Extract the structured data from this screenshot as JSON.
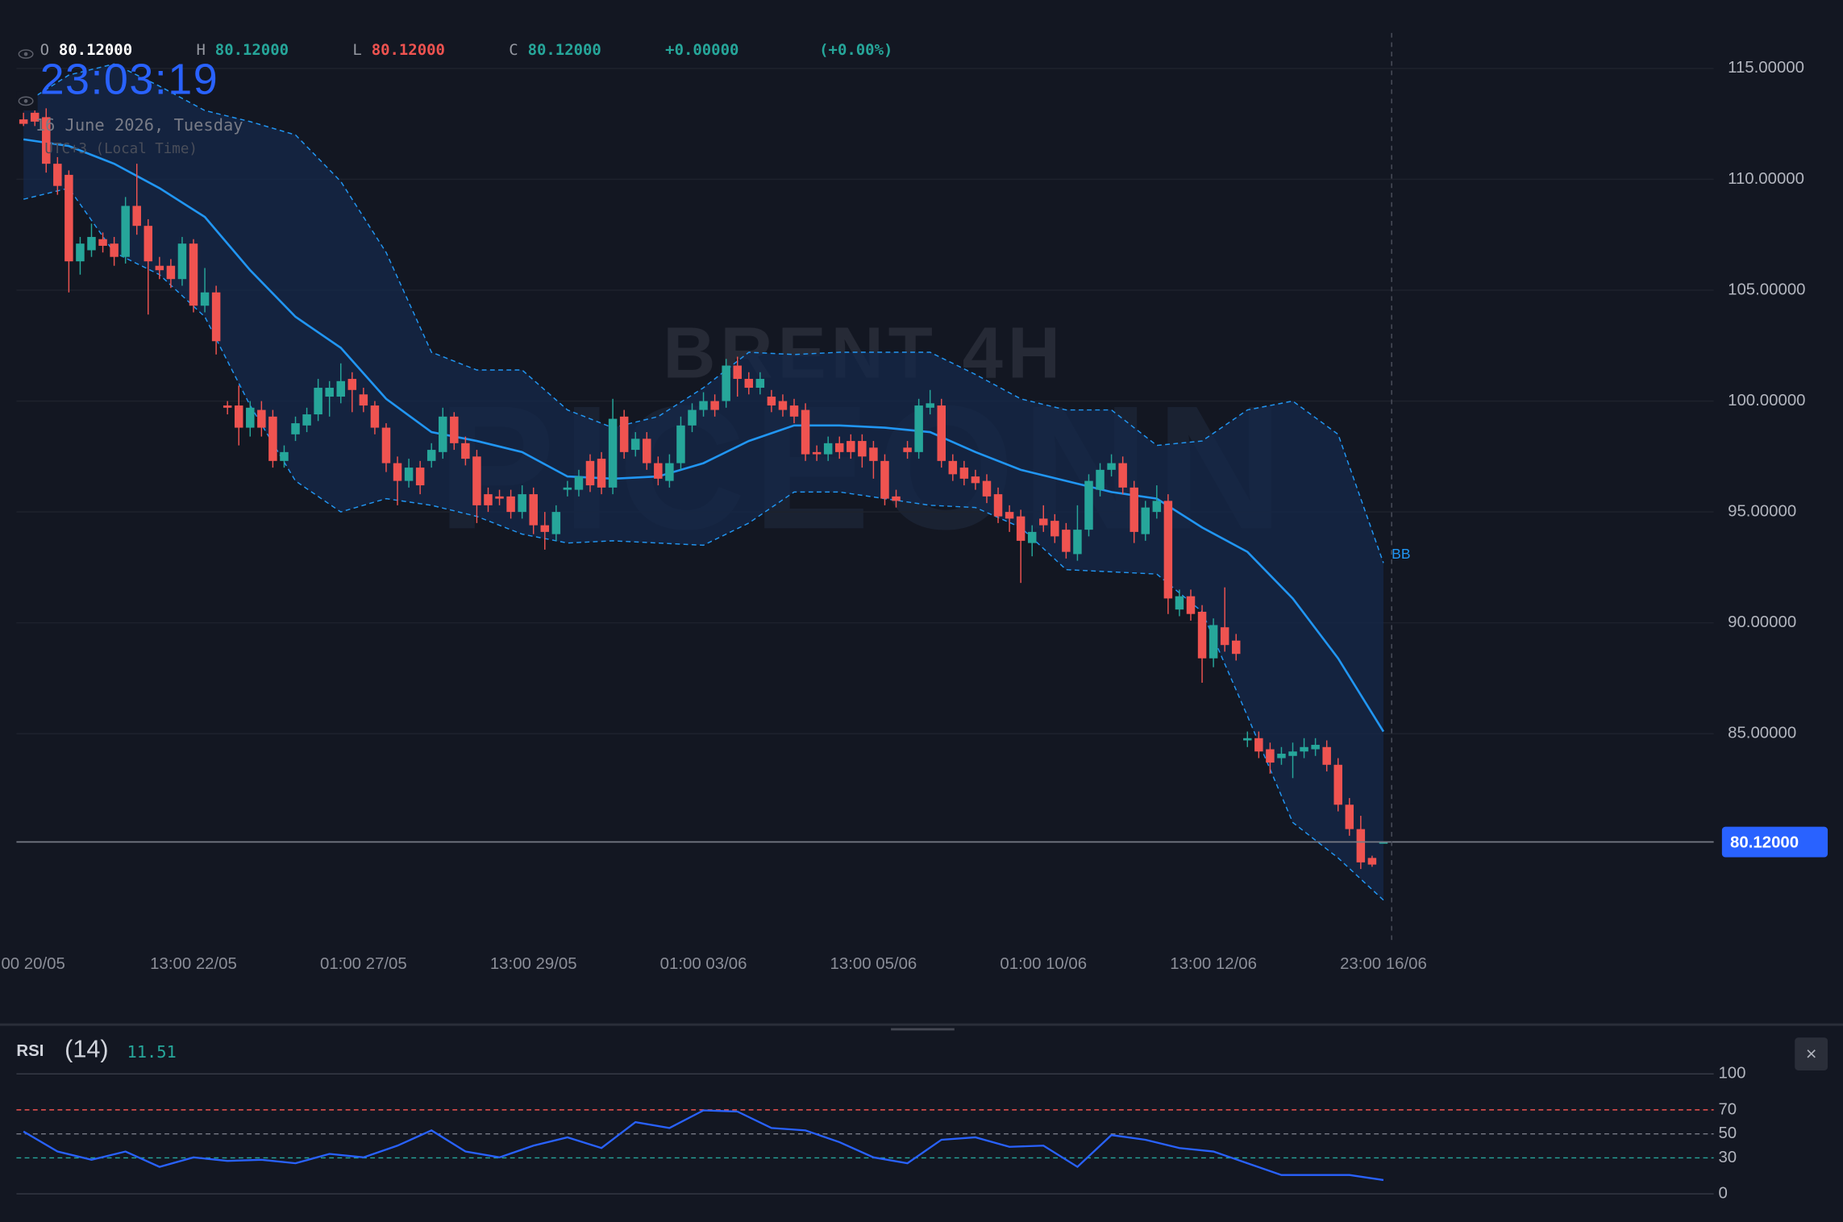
{
  "clock": {
    "time": "23:03:19",
    "date": "16 June 2026, Tuesday",
    "timezone": "UTC+3 (Local Time)"
  },
  "header": {
    "o_label": "O",
    "open": "80.12000",
    "h_label": "H",
    "high": "80.12000",
    "l_label": "L",
    "low": "80.12000",
    "c_label": "C",
    "close": "80.12000",
    "change": "+0.00000",
    "change_pct": "(+0.00%)"
  },
  "close_button": "×",
  "chart_data": [
    {
      "type": "candlestick",
      "title": "BRENT 4H",
      "watermark": "PICEONN",
      "up_color": "#26a69a",
      "down_color": "#ef5350",
      "grid": true,
      "ylim": [
        75.7,
        116.6
      ],
      "yticks": [
        {
          "value": 85,
          "label": "85.00000"
        },
        {
          "value": 90,
          "label": "90.00000"
        },
        {
          "value": 95,
          "label": "95.00000"
        },
        {
          "value": 100,
          "label": "100.00000"
        },
        {
          "value": 105,
          "label": "105.00000"
        },
        {
          "value": 110,
          "label": "110.00000"
        },
        {
          "value": 115,
          "label": "115.00000"
        }
      ],
      "xticks": [
        {
          "value": 0,
          "label": "00 20/05"
        },
        {
          "value": 15,
          "label": "13:00 22/05"
        },
        {
          "value": 30,
          "label": "01:00 27/05"
        },
        {
          "value": 45,
          "label": "13:00 29/05"
        },
        {
          "value": 60,
          "label": "01:00 03/06"
        },
        {
          "value": 75,
          "label": "13:00 05/06"
        },
        {
          "value": 90,
          "label": "01:00 10/06"
        },
        {
          "value": 105,
          "label": "13:00 12/06"
        },
        {
          "value": 120,
          "label": "23:00 16/06"
        }
      ],
      "open": [
        112.7,
        113.0,
        112.8,
        110.7,
        110.2,
        106.3,
        106.8,
        107.3,
        107.1,
        106.5,
        108.8,
        107.9,
        106.1,
        106.1,
        105.5,
        107.1,
        104.3,
        104.9,
        99.8,
        99.8,
        98.8,
        99.6,
        99.3,
        97.3,
        98.5,
        98.9,
        99.4,
        100.2,
        100.2,
        101.0,
        100.3,
        99.8,
        98.8,
        97.2,
        96.4,
        97.0,
        97.3,
        97.7,
        99.3,
        98.1,
        97.5,
        95.8,
        95.7,
        95.7,
        95.0,
        95.8,
        94.4,
        94.0,
        96.0,
        96.0,
        97.3,
        97.4,
        96.1,
        99.3,
        97.8,
        98.3,
        97.2,
        96.4,
        97.2,
        98.9,
        99.6,
        100.0,
        100.0,
        101.6,
        101.0,
        100.6,
        100.2,
        100.0,
        99.8,
        99.6,
        97.7,
        97.6,
        98.1,
        98.2,
        98.2,
        97.9,
        97.3,
        95.7,
        97.9,
        97.7,
        99.7,
        99.8,
        97.3,
        97.0,
        96.6,
        96.4,
        95.8,
        95.0,
        94.8,
        93.6,
        94.7,
        94.6,
        94.2,
        93.1,
        94.2,
        96.0,
        96.9,
        97.2,
        96.1,
        94.0,
        95.0,
        95.5,
        90.6,
        91.2,
        90.5,
        88.4,
        89.8,
        89.2,
        84.7,
        84.8,
        84.3,
        83.9,
        84.0,
        84.2,
        84.3,
        84.4,
        83.6,
        81.8,
        80.7,
        79.4,
        80.12
      ],
      "high": [
        113.0,
        113.3,
        113.2,
        111.0,
        110.4,
        107.4,
        108.0,
        107.6,
        107.4,
        109.2,
        110.7,
        108.2,
        106.5,
        106.4,
        107.4,
        107.3,
        106.0,
        105.2,
        100.0,
        100.7,
        100.0,
        100.0,
        99.6,
        98.0,
        99.3,
        99.7,
        101.0,
        100.9,
        101.7,
        101.3,
        100.6,
        100.0,
        99.0,
        97.5,
        97.4,
        97.3,
        98.1,
        99.7,
        99.5,
        98.4,
        97.8,
        96.1,
        96.0,
        96.0,
        96.2,
        96.1,
        95.0,
        95.3,
        96.4,
        96.9,
        97.6,
        97.7,
        100.1,
        99.6,
        98.6,
        98.6,
        97.5,
        97.6,
        99.3,
        99.9,
        100.4,
        100.3,
        101.9,
        102.0,
        101.3,
        101.3,
        100.5,
        100.3,
        100.1,
        99.9,
        98.0,
        98.4,
        98.4,
        98.5,
        98.5,
        98.2,
        97.6,
        96.0,
        98.2,
        100.1,
        100.5,
        100.1,
        97.6,
        97.3,
        96.9,
        96.7,
        96.1,
        95.3,
        95.1,
        94.4,
        95.3,
        94.9,
        94.5,
        95.3,
        96.7,
        97.2,
        97.6,
        97.5,
        96.4,
        95.5,
        96.2,
        95.8,
        91.5,
        91.5,
        90.8,
        90.2,
        91.6,
        89.5,
        85.1,
        85.1,
        84.6,
        84.4,
        84.6,
        84.8,
        84.8,
        84.7,
        83.9,
        82.1,
        81.3,
        79.5,
        80.12
      ],
      "low": [
        112.4,
        112.4,
        110.3,
        109.3,
        104.9,
        105.7,
        106.5,
        106.7,
        106.1,
        106.2,
        107.5,
        103.9,
        105.5,
        105.1,
        105.2,
        104.0,
        104.0,
        102.1,
        99.4,
        98.0,
        98.4,
        98.4,
        97.0,
        97.0,
        98.2,
        98.6,
        99.1,
        99.3,
        99.9,
        99.5,
        99.5,
        98.5,
        96.8,
        95.3,
        96.1,
        95.8,
        97.0,
        97.4,
        97.8,
        97.1,
        94.5,
        95.0,
        95.3,
        94.7,
        94.7,
        94.0,
        93.3,
        93.7,
        95.7,
        95.7,
        95.9,
        95.8,
        95.8,
        97.4,
        97.5,
        96.9,
        96.2,
        96.1,
        96.9,
        98.6,
        99.3,
        99.3,
        99.7,
        100.2,
        100.3,
        100.3,
        99.5,
        99.3,
        99.0,
        97.3,
        97.3,
        97.3,
        97.4,
        97.4,
        97.0,
        96.5,
        95.3,
        95.2,
        97.4,
        97.4,
        99.4,
        97.0,
        96.4,
        96.2,
        96.0,
        95.4,
        94.5,
        94.1,
        91.8,
        93.0,
        94.1,
        93.6,
        92.9,
        92.8,
        93.9,
        95.7,
        96.6,
        95.8,
        93.6,
        93.7,
        94.7,
        90.4,
        90.3,
        90.1,
        87.3,
        88.0,
        88.7,
        88.3,
        84.4,
        83.9,
        83.2,
        83.6,
        83.0,
        83.9,
        84.0,
        83.3,
        81.5,
        80.4,
        78.9,
        79.0,
        80.12
      ],
      "close": [
        112.5,
        112.6,
        110.7,
        109.7,
        106.3,
        107.1,
        107.4,
        107.0,
        106.5,
        108.8,
        107.9,
        106.3,
        105.9,
        105.5,
        107.1,
        104.3,
        104.9,
        102.7,
        99.7,
        98.8,
        99.7,
        98.8,
        97.3,
        97.7,
        99.0,
        99.4,
        100.6,
        100.6,
        100.9,
        100.5,
        99.8,
        98.8,
        97.2,
        96.4,
        97.0,
        96.2,
        97.8,
        99.3,
        98.1,
        97.4,
        95.3,
        95.3,
        95.6,
        95.0,
        95.8,
        94.4,
        94.1,
        95.0,
        96.1,
        96.6,
        96.2,
        96.1,
        99.2,
        97.7,
        98.3,
        97.2,
        96.5,
        97.2,
        98.9,
        99.6,
        100.0,
        99.6,
        101.6,
        101.0,
        100.6,
        101.0,
        99.8,
        99.6,
        99.3,
        97.6,
        97.6,
        98.1,
        97.7,
        97.7,
        97.5,
        97.3,
        95.6,
        95.5,
        97.7,
        99.8,
        99.9,
        97.3,
        96.7,
        96.5,
        96.3,
        95.7,
        94.8,
        94.7,
        93.7,
        94.1,
        94.4,
        93.9,
        93.2,
        94.2,
        96.4,
        96.9,
        97.2,
        96.1,
        94.1,
        95.2,
        95.5,
        91.1,
        91.2,
        90.4,
        88.4,
        89.9,
        89.0,
        88.6,
        84.8,
        84.2,
        83.7,
        84.1,
        84.2,
        84.4,
        84.5,
        83.6,
        81.8,
        80.7,
        79.2,
        79.1,
        80.12
      ],
      "last_price_label": "80.12000",
      "bollinger": {
        "name": "BB",
        "color": "#2196f3",
        "fill": "#16284a",
        "x": [
          0,
          4,
          8,
          12,
          16,
          20,
          24,
          28,
          32,
          36,
          40,
          44,
          48,
          52,
          56,
          60,
          64,
          68,
          72,
          76,
          80,
          84,
          88,
          92,
          96,
          100,
          104,
          108,
          112,
          116,
          120
        ],
        "upper": [
          113.4,
          114.7,
          115.2,
          114.2,
          113.1,
          112.6,
          112.0,
          109.9,
          106.7,
          102.2,
          101.4,
          101.4,
          99.6,
          98.8,
          99.3,
          100.6,
          102.2,
          102.1,
          102.2,
          102.2,
          102.2,
          101.2,
          100.1,
          99.6,
          99.6,
          98.0,
          98.2,
          99.6,
          100.0,
          98.5,
          92.7
        ],
        "middle": [
          111.8,
          111.5,
          110.7,
          109.6,
          108.3,
          105.9,
          103.8,
          102.4,
          100.1,
          98.6,
          98.2,
          97.7,
          96.6,
          96.5,
          96.6,
          97.2,
          98.2,
          98.9,
          98.9,
          98.8,
          98.6,
          97.7,
          96.9,
          96.4,
          95.9,
          95.6,
          94.3,
          93.2,
          91.1,
          88.4,
          85.1
        ],
        "lower": [
          109.1,
          109.6,
          106.7,
          105.7,
          103.8,
          99.8,
          96.4,
          95.0,
          95.6,
          95.3,
          94.8,
          94.0,
          93.6,
          93.7,
          93.6,
          93.5,
          94.5,
          95.9,
          95.9,
          95.6,
          95.3,
          95.2,
          94.3,
          92.4,
          92.3,
          92.2,
          90.5,
          85.8,
          81.0,
          79.4,
          77.5
        ]
      }
    },
    {
      "type": "line",
      "name": "RSI",
      "period_label": "(14)",
      "color": "#2962ff",
      "ylim": [
        -8,
        108
      ],
      "yticks": [
        0,
        30,
        50,
        70,
        100
      ],
      "level_colors": [
        "#363a45",
        "#26a69a",
        "#787b86",
        "#ef5350",
        "#363a45"
      ],
      "level_dashed": [
        false,
        true,
        true,
        true,
        false
      ],
      "x": [
        0,
        3,
        6,
        9,
        12,
        15,
        18,
        21,
        24,
        27,
        30,
        33,
        36,
        39,
        42,
        45,
        48,
        51,
        54,
        57,
        60,
        63,
        66,
        69,
        72,
        75,
        78,
        81,
        84,
        87,
        90,
        93,
        96,
        99,
        102,
        105,
        108,
        111,
        114,
        117,
        120
      ],
      "values": [
        52.0,
        35.3,
        28.4,
        35.3,
        22.5,
        30.4,
        27.5,
        28.4,
        25.5,
        33.3,
        30.4,
        40.2,
        52.9,
        35.3,
        30.4,
        40.2,
        47.1,
        38.2,
        59.8,
        54.9,
        69.6,
        68.6,
        54.9,
        52.9,
        43.1,
        30.4,
        25.5,
        45.1,
        47.1,
        39.2,
        40.2,
        22.5,
        49.0,
        45.1,
        38.2,
        35.3,
        25.5,
        15.7,
        15.7,
        15.7,
        11.51
      ]
    }
  ]
}
